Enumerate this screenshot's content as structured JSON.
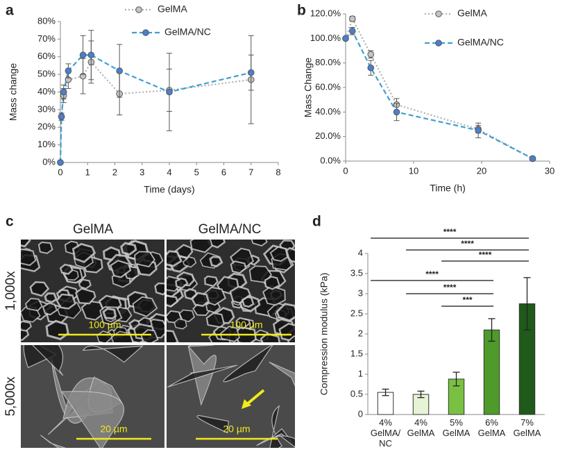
{
  "panel_labels": [
    "a",
    "b",
    "c",
    "d"
  ],
  "chart_data": [
    {
      "type": "line",
      "x_label": "Time (days)",
      "y_label": "Mass change",
      "xlim": [
        0,
        8
      ],
      "xticks": [
        0,
        1,
        2,
        3,
        4,
        5,
        6,
        7,
        8
      ],
      "ylim": [
        0,
        80
      ],
      "yticks": [
        {
          "value": 0,
          "label": "0%"
        },
        {
          "value": 10,
          "label": "10%"
        },
        {
          "value": 20,
          "label": "20%"
        },
        {
          "value": 30,
          "label": "30%"
        },
        {
          "value": 40,
          "label": "40%"
        },
        {
          "value": 50,
          "label": "50%"
        },
        {
          "value": 60,
          "label": "60%"
        },
        {
          "value": 70,
          "label": "70%"
        },
        {
          "value": 80,
          "label": "80%"
        }
      ],
      "series": [
        {
          "name": "GelMA",
          "color": "#c4c4c4",
          "line_color": "#b0b0b0",
          "line_style": "dotted",
          "x": [
            0,
            0.04,
            0.12,
            0.29,
            0.83,
            1.13,
            2.17,
            4,
            7
          ],
          "values": [
            0,
            26,
            38,
            47,
            49,
            57,
            39,
            41,
            47
          ],
          "errors": [
            0,
            2,
            4,
            5,
            10,
            12,
            12,
            12,
            25
          ]
        },
        {
          "name": "GelMA/NC",
          "color": "#4a7fd0",
          "line_color": "#3f9fd0",
          "line_style": "dashed",
          "x": [
            0,
            0.04,
            0.12,
            0.29,
            0.83,
            1.13,
            2.17,
            4,
            7
          ],
          "values": [
            0,
            26,
            40,
            52,
            61,
            61,
            52,
            40,
            51
          ],
          "errors": [
            0,
            2,
            4,
            4,
            11,
            14,
            15,
            22,
            10
          ]
        }
      ]
    },
    {
      "type": "line",
      "x_label": "Time (h)",
      "y_label": "Mass Change",
      "xlim": [
        0,
        30
      ],
      "xticks": [
        0,
        10,
        20,
        30
      ],
      "ylim": [
        0,
        120
      ],
      "yticks": [
        {
          "value": 0,
          "label": "0.0%"
        },
        {
          "value": 20,
          "label": "20.0%"
        },
        {
          "value": 40,
          "label": "40.0%"
        },
        {
          "value": 60,
          "label": "60.0%"
        },
        {
          "value": 80,
          "label": "80.0%"
        },
        {
          "value": 100,
          "label": "100.0%"
        },
        {
          "value": 120,
          "label": "120.0%"
        }
      ],
      "series": [
        {
          "name": "GelMA",
          "color": "#c4c4c4",
          "line_color": "#b0b0b0",
          "line_style": "dotted",
          "x": [
            0,
            1,
            3.7,
            7.5,
            19.5,
            27.5
          ],
          "values": [
            100,
            116,
            87,
            46,
            26,
            2
          ],
          "errors": [
            0,
            2,
            3,
            5,
            3,
            0
          ]
        },
        {
          "name": "GelMA/NC",
          "color": "#4a7fd0",
          "line_color": "#3f9fd0",
          "line_style": "dashed",
          "x": [
            0,
            1,
            3.7,
            7.5,
            19.5,
            27.5
          ],
          "values": [
            100,
            106,
            76,
            40,
            25,
            2
          ],
          "errors": [
            0,
            3,
            6,
            7,
            6,
            1
          ]
        }
      ]
    },
    {
      "type": "bar",
      "y_label": "Compression modulus  (kPa)",
      "categories": [
        "4%\nGelMA/\nNC",
        "4%\nGelMA",
        "5%\nGelMA",
        "6%\nGelMA",
        "7%\nGelMA"
      ],
      "values": [
        0.55,
        0.5,
        0.88,
        2.1,
        2.75
      ],
      "errors": [
        0.08,
        0.08,
        0.17,
        0.28,
        0.65
      ],
      "colors": [
        "#ffffff",
        "#e4f4d4",
        "#7ac143",
        "#4e9a2a",
        "#1f5a1a"
      ],
      "ylim": [
        0,
        4
      ],
      "yticks": [
        0,
        0.5,
        1,
        1.5,
        2,
        2.5,
        3,
        3.5,
        4
      ],
      "significance": [
        {
          "groups": [
            0,
            4
          ],
          "label": "****"
        },
        {
          "groups": [
            1,
            4
          ],
          "label": "****"
        },
        {
          "groups": [
            2,
            4
          ],
          "label": "****"
        },
        {
          "groups": [
            0,
            3
          ],
          "label": "****"
        },
        {
          "groups": [
            1,
            3
          ],
          "label": "****"
        },
        {
          "groups": [
            2,
            3
          ],
          "label": "***"
        }
      ]
    }
  ],
  "micrographs": {
    "columns": [
      "GelMA",
      "GelMA/NC"
    ],
    "rows": [
      "1,000x",
      "5,000x"
    ],
    "scale_bars": [
      "100 µm",
      "100 µm",
      "20 µm",
      "20 µm"
    ]
  }
}
